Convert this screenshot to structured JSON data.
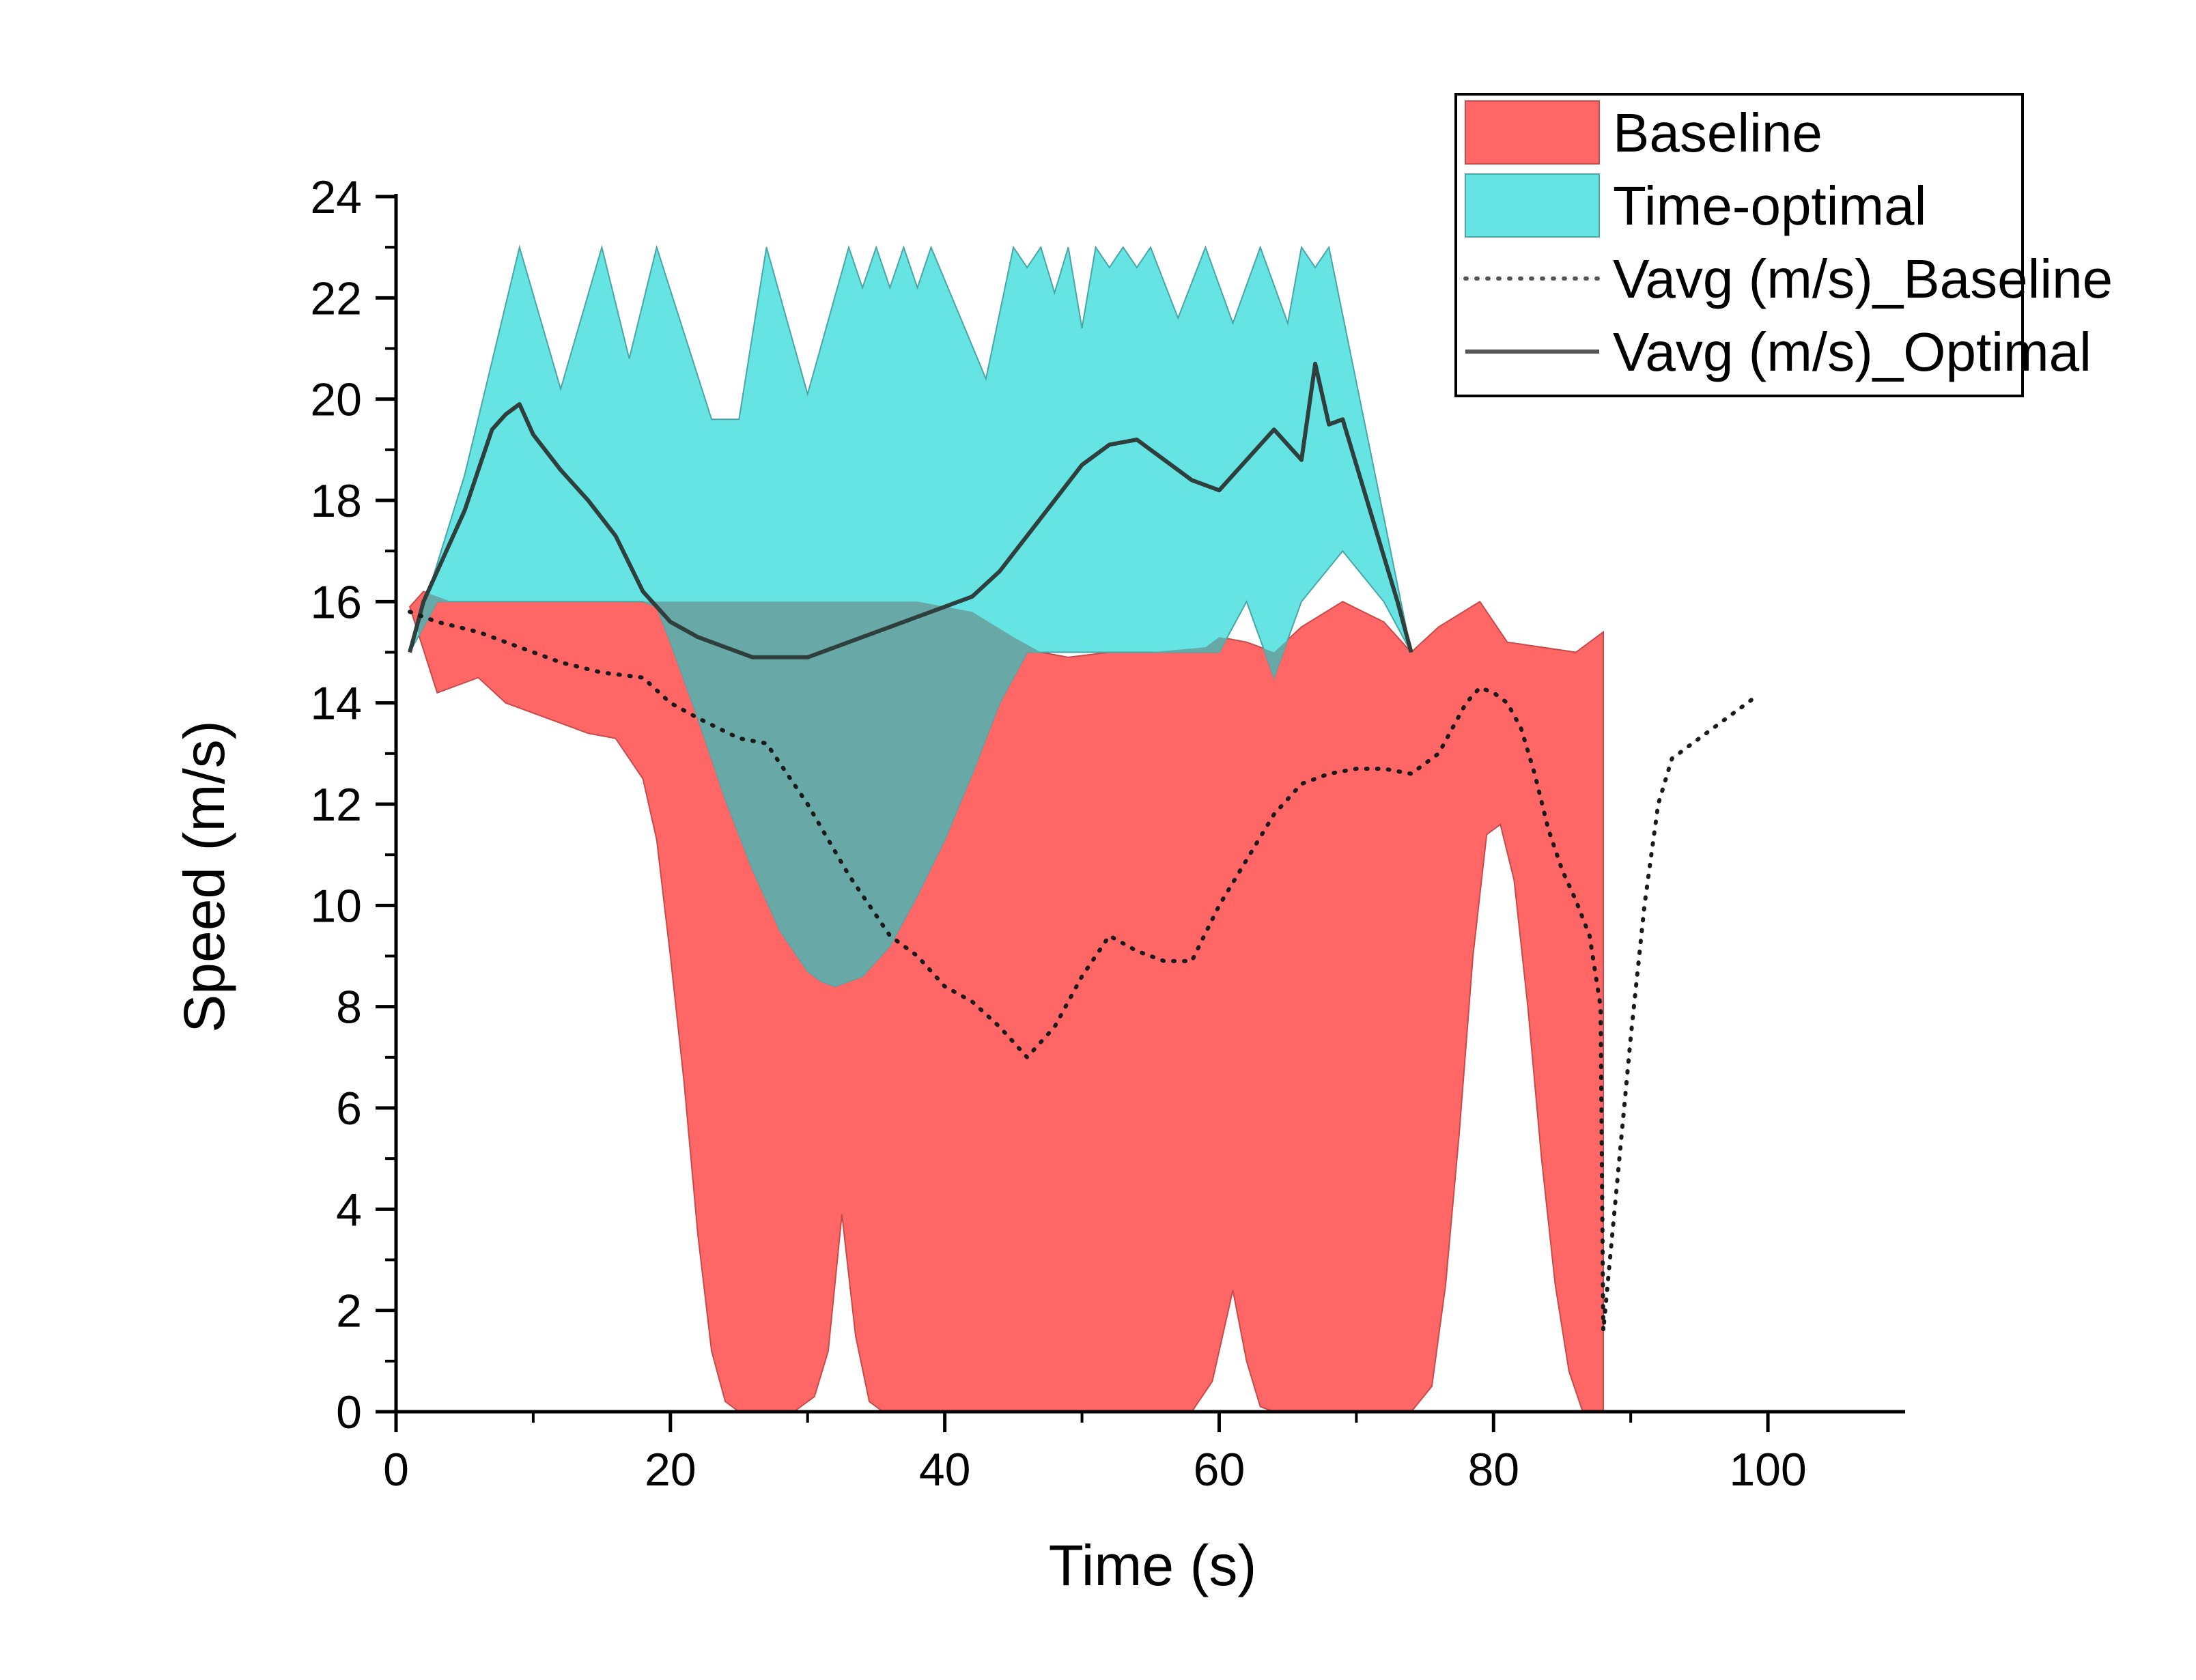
{
  "chart_data": {
    "type": "area",
    "title": "",
    "xlabel": "Time (s)",
    "ylabel": "Speed (m/s)",
    "xlim": [
      0,
      110
    ],
    "ylim": [
      0,
      24
    ],
    "x_ticks": [
      "0",
      "20",
      "40",
      "60",
      "80",
      "100"
    ],
    "y_ticks": [
      "0",
      "2",
      "4",
      "6",
      "8",
      "10",
      "12",
      "14",
      "16",
      "18",
      "20",
      "22",
      "24"
    ],
    "grid": false,
    "legend_position": "top-right",
    "colors": {
      "baseline_fill": "#ff6666",
      "optimal_fill": "#66e3e3",
      "overlap_fill": "#68a9a7",
      "avg_line": "#2f3f3e"
    },
    "series": [
      {
        "name": "Baseline",
        "kind": "band",
        "upper": [
          [
            1.0,
            15.9
          ],
          [
            2.0,
            16.2
          ],
          [
            3.0,
            16.1
          ],
          [
            4.0,
            16.0
          ],
          [
            6.0,
            16.0
          ],
          [
            8.0,
            16.0
          ],
          [
            10.0,
            16.0
          ],
          [
            18.0,
            16.0
          ],
          [
            20.0,
            16.0
          ],
          [
            28.0,
            16.0
          ],
          [
            38.0,
            16.0
          ],
          [
            42.0,
            15.8
          ],
          [
            45.0,
            15.3
          ],
          [
            47.0,
            15.0
          ],
          [
            49.0,
            14.9
          ],
          [
            52.0,
            15.0
          ],
          [
            55.0,
            15.0
          ],
          [
            59.0,
            15.1
          ],
          [
            60.0,
            15.3
          ],
          [
            62.0,
            15.2
          ],
          [
            64.0,
            15.0
          ],
          [
            66.0,
            15.5
          ],
          [
            69.0,
            16.0
          ],
          [
            72.0,
            15.6
          ],
          [
            74.0,
            15.0
          ],
          [
            76.0,
            15.5
          ],
          [
            79.0,
            16.0
          ],
          [
            81.0,
            15.2
          ],
          [
            86.0,
            15.0
          ],
          [
            88.0,
            15.4
          ]
        ],
        "lower": [
          [
            1.0,
            15.9
          ],
          [
            3.0,
            14.2
          ],
          [
            6.0,
            14.5
          ],
          [
            8.0,
            14.0
          ],
          [
            10.0,
            13.8
          ],
          [
            12.0,
            13.6
          ],
          [
            14.0,
            13.4
          ],
          [
            16.0,
            13.3
          ],
          [
            18.0,
            12.5
          ],
          [
            19.0,
            11.3
          ],
          [
            20.0,
            9.0
          ],
          [
            21.0,
            6.5
          ],
          [
            22.0,
            3.5
          ],
          [
            23.0,
            1.2
          ],
          [
            24.0,
            0.2
          ],
          [
            25.0,
            0.0
          ],
          [
            29.0,
            0.0
          ],
          [
            30.5,
            0.3
          ],
          [
            31.5,
            1.2
          ],
          [
            32.5,
            3.9
          ],
          [
            33.5,
            1.5
          ],
          [
            34.5,
            0.2
          ],
          [
            35.5,
            0.0
          ],
          [
            58.0,
            0.0
          ],
          [
            59.5,
            0.6
          ],
          [
            61.0,
            2.4
          ],
          [
            62.0,
            1.0
          ],
          [
            63.0,
            0.1
          ],
          [
            64.0,
            0.0
          ],
          [
            74.0,
            0.0
          ],
          [
            75.5,
            0.5
          ],
          [
            76.5,
            2.5
          ],
          [
            77.5,
            5.5
          ],
          [
            78.5,
            9.0
          ],
          [
            79.5,
            11.4
          ],
          [
            80.5,
            11.6
          ],
          [
            81.5,
            10.5
          ],
          [
            82.5,
            8.0
          ],
          [
            83.5,
            5.0
          ],
          [
            84.5,
            2.5
          ],
          [
            85.5,
            0.8
          ],
          [
            86.5,
            0.0
          ],
          [
            88.0,
            0.0
          ]
        ]
      },
      {
        "name": "Time-optimal",
        "kind": "band",
        "upper": [
          [
            1.0,
            15.0
          ],
          [
            5.0,
            18.5
          ],
          [
            9.0,
            23.0
          ],
          [
            12.0,
            20.2
          ],
          [
            15.0,
            23.0
          ],
          [
            17.0,
            20.8
          ],
          [
            19.0,
            23.0
          ],
          [
            23.0,
            19.6
          ],
          [
            25.0,
            19.6
          ],
          [
            27.0,
            23.0
          ],
          [
            30.0,
            20.1
          ],
          [
            33.0,
            23.0
          ],
          [
            34.0,
            22.2
          ],
          [
            35.0,
            23.0
          ],
          [
            36.0,
            22.2
          ],
          [
            37.0,
            23.0
          ],
          [
            38.0,
            22.2
          ],
          [
            39.0,
            23.0
          ],
          [
            43.0,
            20.4
          ],
          [
            45.0,
            23.0
          ],
          [
            46.0,
            22.6
          ],
          [
            47.0,
            23.0
          ],
          [
            48.0,
            22.1
          ],
          [
            49.0,
            23.0
          ],
          [
            50.0,
            21.4
          ],
          [
            51.0,
            23.0
          ],
          [
            52.0,
            22.6
          ],
          [
            53.0,
            23.0
          ],
          [
            54.0,
            22.6
          ],
          [
            55.0,
            23.0
          ],
          [
            57.0,
            21.6
          ],
          [
            59.0,
            23.0
          ],
          [
            61.0,
            21.5
          ],
          [
            63.0,
            23.0
          ],
          [
            65.0,
            21.5
          ],
          [
            66.0,
            23.0
          ],
          [
            67.0,
            22.6
          ],
          [
            68.0,
            23.0
          ],
          [
            74.0,
            15.0
          ]
        ],
        "lower": [
          [
            1.0,
            15.0
          ],
          [
            3.0,
            16.0
          ],
          [
            10.0,
            16.0
          ],
          [
            18.0,
            16.0
          ],
          [
            19.0,
            15.9
          ],
          [
            20.0,
            15.2
          ],
          [
            22.0,
            13.7
          ],
          [
            24.0,
            12.1
          ],
          [
            26.0,
            10.7
          ],
          [
            28.0,
            9.5
          ],
          [
            30.0,
            8.7
          ],
          [
            31.0,
            8.5
          ],
          [
            32.0,
            8.4
          ],
          [
            34.0,
            8.6
          ],
          [
            36.0,
            9.2
          ],
          [
            38.0,
            10.2
          ],
          [
            40.0,
            11.3
          ],
          [
            42.0,
            12.6
          ],
          [
            44.0,
            14.0
          ],
          [
            46.0,
            15.0
          ],
          [
            55.0,
            15.0
          ],
          [
            60.0,
            15.0
          ],
          [
            62.0,
            16.0
          ],
          [
            64.0,
            14.5
          ],
          [
            66.0,
            16.0
          ],
          [
            69.0,
            17.0
          ],
          [
            72.0,
            16.0
          ],
          [
            74.0,
            15.0
          ]
        ]
      },
      {
        "name": "Vavg (m/s)_Baseline",
        "kind": "line",
        "style": "dotted",
        "points": [
          [
            1.0,
            15.8
          ],
          [
            3.0,
            15.6
          ],
          [
            6.0,
            15.4
          ],
          [
            9.0,
            15.1
          ],
          [
            12.0,
            14.8
          ],
          [
            15.0,
            14.6
          ],
          [
            18.0,
            14.5
          ],
          [
            20.0,
            14.0
          ],
          [
            22.0,
            13.7
          ],
          [
            25.0,
            13.3
          ],
          [
            27.0,
            13.2
          ],
          [
            30.0,
            12.0
          ],
          [
            33.0,
            10.6
          ],
          [
            36.0,
            9.4
          ],
          [
            38.0,
            9.0
          ],
          [
            40.0,
            8.4
          ],
          [
            42.0,
            8.1
          ],
          [
            44.0,
            7.6
          ],
          [
            46.0,
            7.0
          ],
          [
            48.0,
            7.6
          ],
          [
            50.0,
            8.6
          ],
          [
            52.0,
            9.4
          ],
          [
            54.0,
            9.1
          ],
          [
            56.0,
            8.9
          ],
          [
            58.0,
            8.9
          ],
          [
            60.0,
            10.0
          ],
          [
            62.0,
            10.9
          ],
          [
            64.0,
            11.8
          ],
          [
            66.0,
            12.4
          ],
          [
            68.0,
            12.6
          ],
          [
            70.0,
            12.7
          ],
          [
            72.0,
            12.7
          ],
          [
            74.0,
            12.6
          ],
          [
            76.0,
            13.0
          ],
          [
            78.0,
            14.0
          ],
          [
            79.0,
            14.3
          ],
          [
            80.0,
            14.2
          ],
          [
            81.0,
            14.0
          ],
          [
            82.0,
            13.5
          ],
          [
            83.0,
            12.6
          ],
          [
            84.0,
            11.5
          ],
          [
            85.0,
            10.7
          ],
          [
            86.0,
            10.1
          ],
          [
            87.0,
            9.4
          ],
          [
            87.8,
            8.0
          ],
          [
            88.0,
            1.6
          ],
          [
            89.0,
            4.5
          ],
          [
            90.0,
            7.4
          ],
          [
            91.0,
            10.0
          ],
          [
            92.0,
            12.0
          ],
          [
            93.0,
            12.9
          ],
          [
            95.0,
            13.3
          ],
          [
            97.0,
            13.7
          ],
          [
            99.0,
            14.1
          ]
        ]
      },
      {
        "name": "Vavg (m/s)_Optimal",
        "kind": "line",
        "style": "solid",
        "points": [
          [
            1.0,
            15.0
          ],
          [
            2.0,
            16.0
          ],
          [
            3.0,
            16.6
          ],
          [
            4.0,
            17.2
          ],
          [
            5.0,
            17.8
          ],
          [
            6.0,
            18.6
          ],
          [
            7.0,
            19.4
          ],
          [
            8.0,
            19.7
          ],
          [
            9.0,
            19.9
          ],
          [
            10.0,
            19.3
          ],
          [
            12.0,
            18.6
          ],
          [
            14.0,
            18.0
          ],
          [
            16.0,
            17.3
          ],
          [
            18.0,
            16.2
          ],
          [
            20.0,
            15.6
          ],
          [
            22.0,
            15.3
          ],
          [
            24.0,
            15.1
          ],
          [
            26.0,
            14.9
          ],
          [
            28.0,
            14.9
          ],
          [
            30.0,
            14.9
          ],
          [
            32.0,
            15.1
          ],
          [
            34.0,
            15.3
          ],
          [
            36.0,
            15.5
          ],
          [
            38.0,
            15.7
          ],
          [
            40.0,
            15.9
          ],
          [
            42.0,
            16.1
          ],
          [
            44.0,
            16.6
          ],
          [
            46.0,
            17.3
          ],
          [
            48.0,
            18.0
          ],
          [
            50.0,
            18.7
          ],
          [
            52.0,
            19.1
          ],
          [
            54.0,
            19.2
          ],
          [
            56.0,
            18.8
          ],
          [
            58.0,
            18.4
          ],
          [
            60.0,
            18.2
          ],
          [
            62.0,
            18.8
          ],
          [
            64.0,
            19.4
          ],
          [
            66.0,
            18.8
          ],
          [
            67.0,
            20.7
          ],
          [
            68.0,
            19.5
          ],
          [
            69.0,
            19.6
          ],
          [
            70.0,
            18.7
          ],
          [
            72.0,
            16.9
          ],
          [
            73.0,
            16.0
          ],
          [
            74.0,
            15.0
          ]
        ]
      }
    ]
  }
}
